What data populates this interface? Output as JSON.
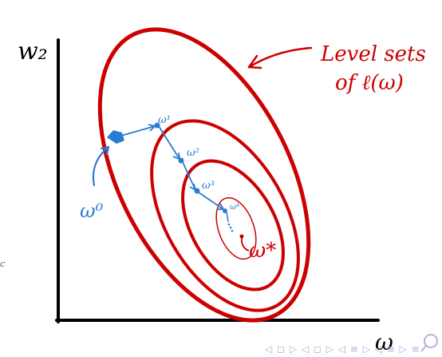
{
  "labels": {
    "y_axis": "w₂",
    "x_axis": "ω",
    "annotation_line1": "Level sets",
    "annotation_line2": "of ℓ(ω)",
    "w0": "ω⁰",
    "w1": "ω¹",
    "w2": "ω²",
    "w3": "ω³",
    "w4": "ω⁴",
    "w_star": "ω*",
    "margin_char": "c"
  },
  "colors": {
    "axis": "#000000",
    "level_sets": "#cc0000",
    "iterates": "#2b7bd6"
  },
  "icons": {
    "nav": "beamer-navigation-icons",
    "zoom": "search-icon"
  },
  "nav_symbols": "◁ ◻ ▷ ◁ ◻ ▷ ◁ ≡ ▷ ◁ ≡ ▷ ≡"
}
